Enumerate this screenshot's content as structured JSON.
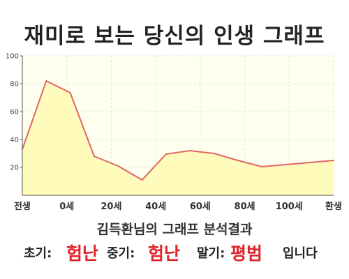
{
  "title": "재미로 보는 당신의 인생 그래프",
  "colors": {
    "line": "#e06666",
    "fill": "#fffbbb",
    "plot_background": "#fffff0",
    "result_value": "#e0232a"
  },
  "chart_data": {
    "type": "area",
    "title": "재미로 보는 당신의 인생 그래프",
    "x": [
      0,
      1,
      2,
      3,
      4,
      5,
      6,
      7,
      8,
      9,
      10,
      11,
      12,
      13
    ],
    "y": [
      33,
      82,
      73.5,
      28,
      21,
      11,
      29.5,
      32,
      30,
      25,
      20.5,
      22,
      23.5,
      25
    ],
    "x_tick_labels": [
      "전생",
      "0세",
      "20세",
      "40세",
      "60세",
      "80세",
      "100세",
      "환생"
    ],
    "y_ticks": [
      20,
      40,
      60,
      80,
      100
    ],
    "ylim": [
      0,
      100
    ],
    "grid": true,
    "xlabel": "",
    "ylabel": ""
  },
  "summary": "김득환님의 그래프 분석결과",
  "result": {
    "early_label": "초기:",
    "early_value": "험난",
    "middle_label": "중기:",
    "middle_value": "험난",
    "late_label": "말기:",
    "late_value": "평범",
    "ending": "입니다"
  }
}
